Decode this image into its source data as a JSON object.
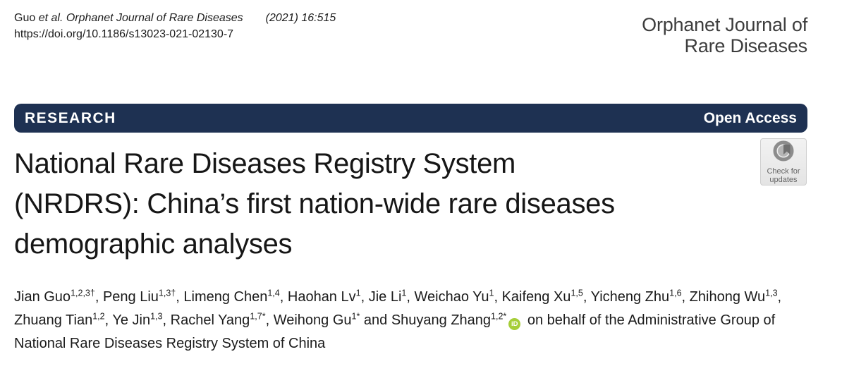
{
  "header": {
    "citation_name": "Guo",
    "citation_rest": "et al. Orphanet Journal of Rare Diseases",
    "citation_issue": "(2021) 16:515",
    "doi": "https://doi.org/10.1186/s13023-021-02130-7",
    "journal_name_line1": "Orphanet Journal of",
    "journal_name_line2": "Rare Diseases"
  },
  "banner": {
    "type_label": "RESEARCH",
    "access_label": "Open Access",
    "bg_color": "#1e3152"
  },
  "check_badge": {
    "line1": "Check for",
    "line2": "updates"
  },
  "title": {
    "lines": [
      "National Rare Diseases Registry System",
      "(NRDRS): China’s first nation-wide rare diseases",
      "demographic analyses"
    ]
  },
  "authors": {
    "list": [
      {
        "name": "Jian Guo",
        "sup": "1,2,3†"
      },
      {
        "name": "Peng Liu",
        "sup": "1,3†"
      },
      {
        "name": "Limeng Chen",
        "sup": "1,4"
      },
      {
        "name": "Haohan Lv",
        "sup": "1"
      },
      {
        "name": "Jie Li",
        "sup": "1"
      },
      {
        "name": "Weichao Yu",
        "sup": "1"
      },
      {
        "name": "Kaifeng Xu",
        "sup": "1,5"
      },
      {
        "name": "Yicheng Zhu",
        "sup": "1,6"
      },
      {
        "name": "Zhihong Wu",
        "sup": "1,3"
      },
      {
        "name": "Zhuang Tian",
        "sup": "1,2"
      },
      {
        "name": "Ye Jin",
        "sup": "1,3"
      },
      {
        "name": "Rachel Yang",
        "sup": "1,7*"
      },
      {
        "name": "Weihong Gu",
        "sup": "1*"
      },
      {
        "name": "Shuyang Zhang",
        "sup": "1,2*",
        "orcid": true
      }
    ],
    "conjunction": "and",
    "on_behalf_text": "on behalf of the Administrative Group of National Rare Diseases Registry System of China",
    "orcid_label": "iD",
    "orcid_color": "#A6CE39"
  }
}
